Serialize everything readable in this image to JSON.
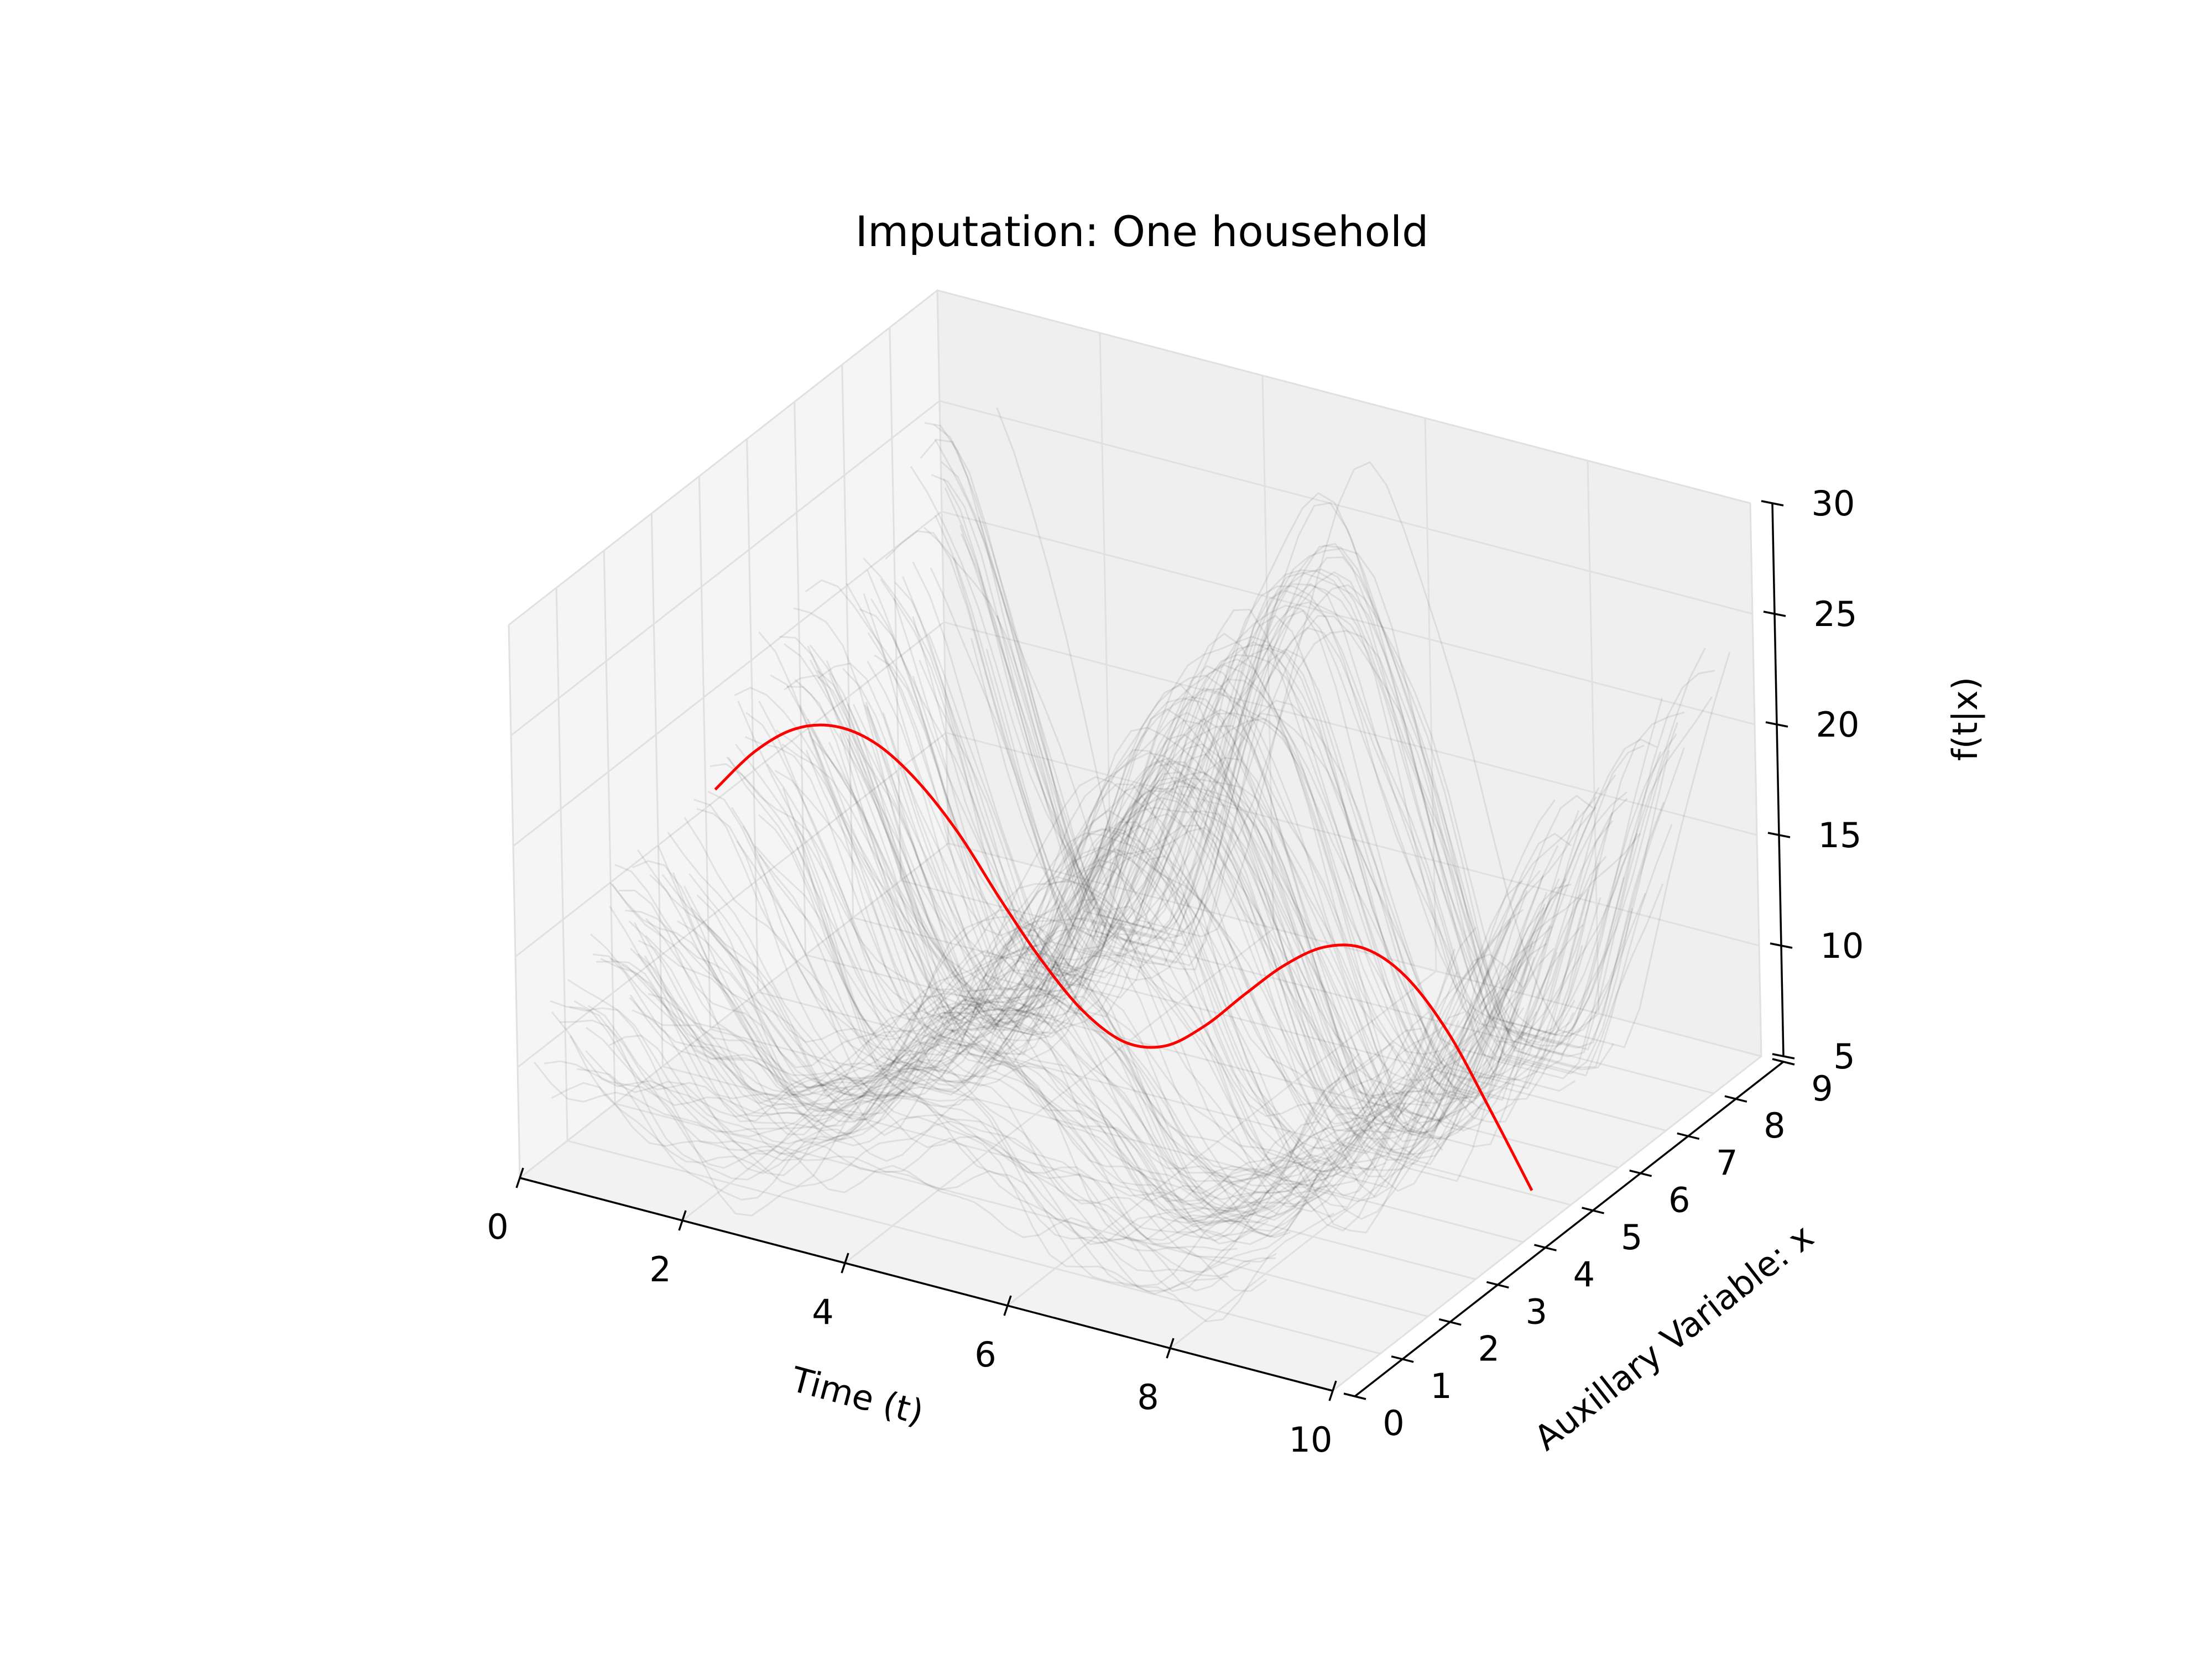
{
  "chart_data": {
    "type": "line",
    "projection": "3d",
    "title": "Imputation: One household",
    "xlabel": "Time (t)",
    "ylabel": "Auxillary Variable: x",
    "zlabel": "f(t|x)",
    "xlim": [
      0,
      10
    ],
    "ylim": [
      0,
      9
    ],
    "zlim": [
      5,
      30
    ],
    "xticks": [
      "0",
      "2",
      "4",
      "6",
      "8",
      "10"
    ],
    "yticks": [
      "0",
      "1",
      "2",
      "3",
      "4",
      "5",
      "6",
      "7",
      "8",
      "9"
    ],
    "zticks": [
      "5",
      "10",
      "15",
      "20",
      "25",
      "30"
    ],
    "grid": true,
    "background_curves": {
      "color": "#000000",
      "opacity": 0.08,
      "x_range": [
        0,
        10
      ],
      "y_range": [
        0,
        9
      ],
      "approx_count": 150,
      "shape": "two peaks near t=2.5 and t=7.5 with a trough near t=5; amplitude grows with x"
    },
    "series": [
      {
        "color": "#ff0000",
        "y_const": 4.2,
        "x": [
          0,
          0.5,
          1,
          1.5,
          2,
          2.5,
          3,
          3.5,
          4,
          4.5,
          5,
          5.5,
          6,
          6.5,
          7,
          7.5,
          8,
          8.5,
          9,
          9.5,
          10
        ],
        "z": [
          15.5,
          17.7,
          19.2,
          19.8,
          19.5,
          18.3,
          16.4,
          13.9,
          11.6,
          9.8,
          8.9,
          9.2,
          10.6,
          12.5,
          14.3,
          15.6,
          16.0,
          15.2,
          13.2,
          10.2,
          7.0
        ]
      }
    ]
  }
}
